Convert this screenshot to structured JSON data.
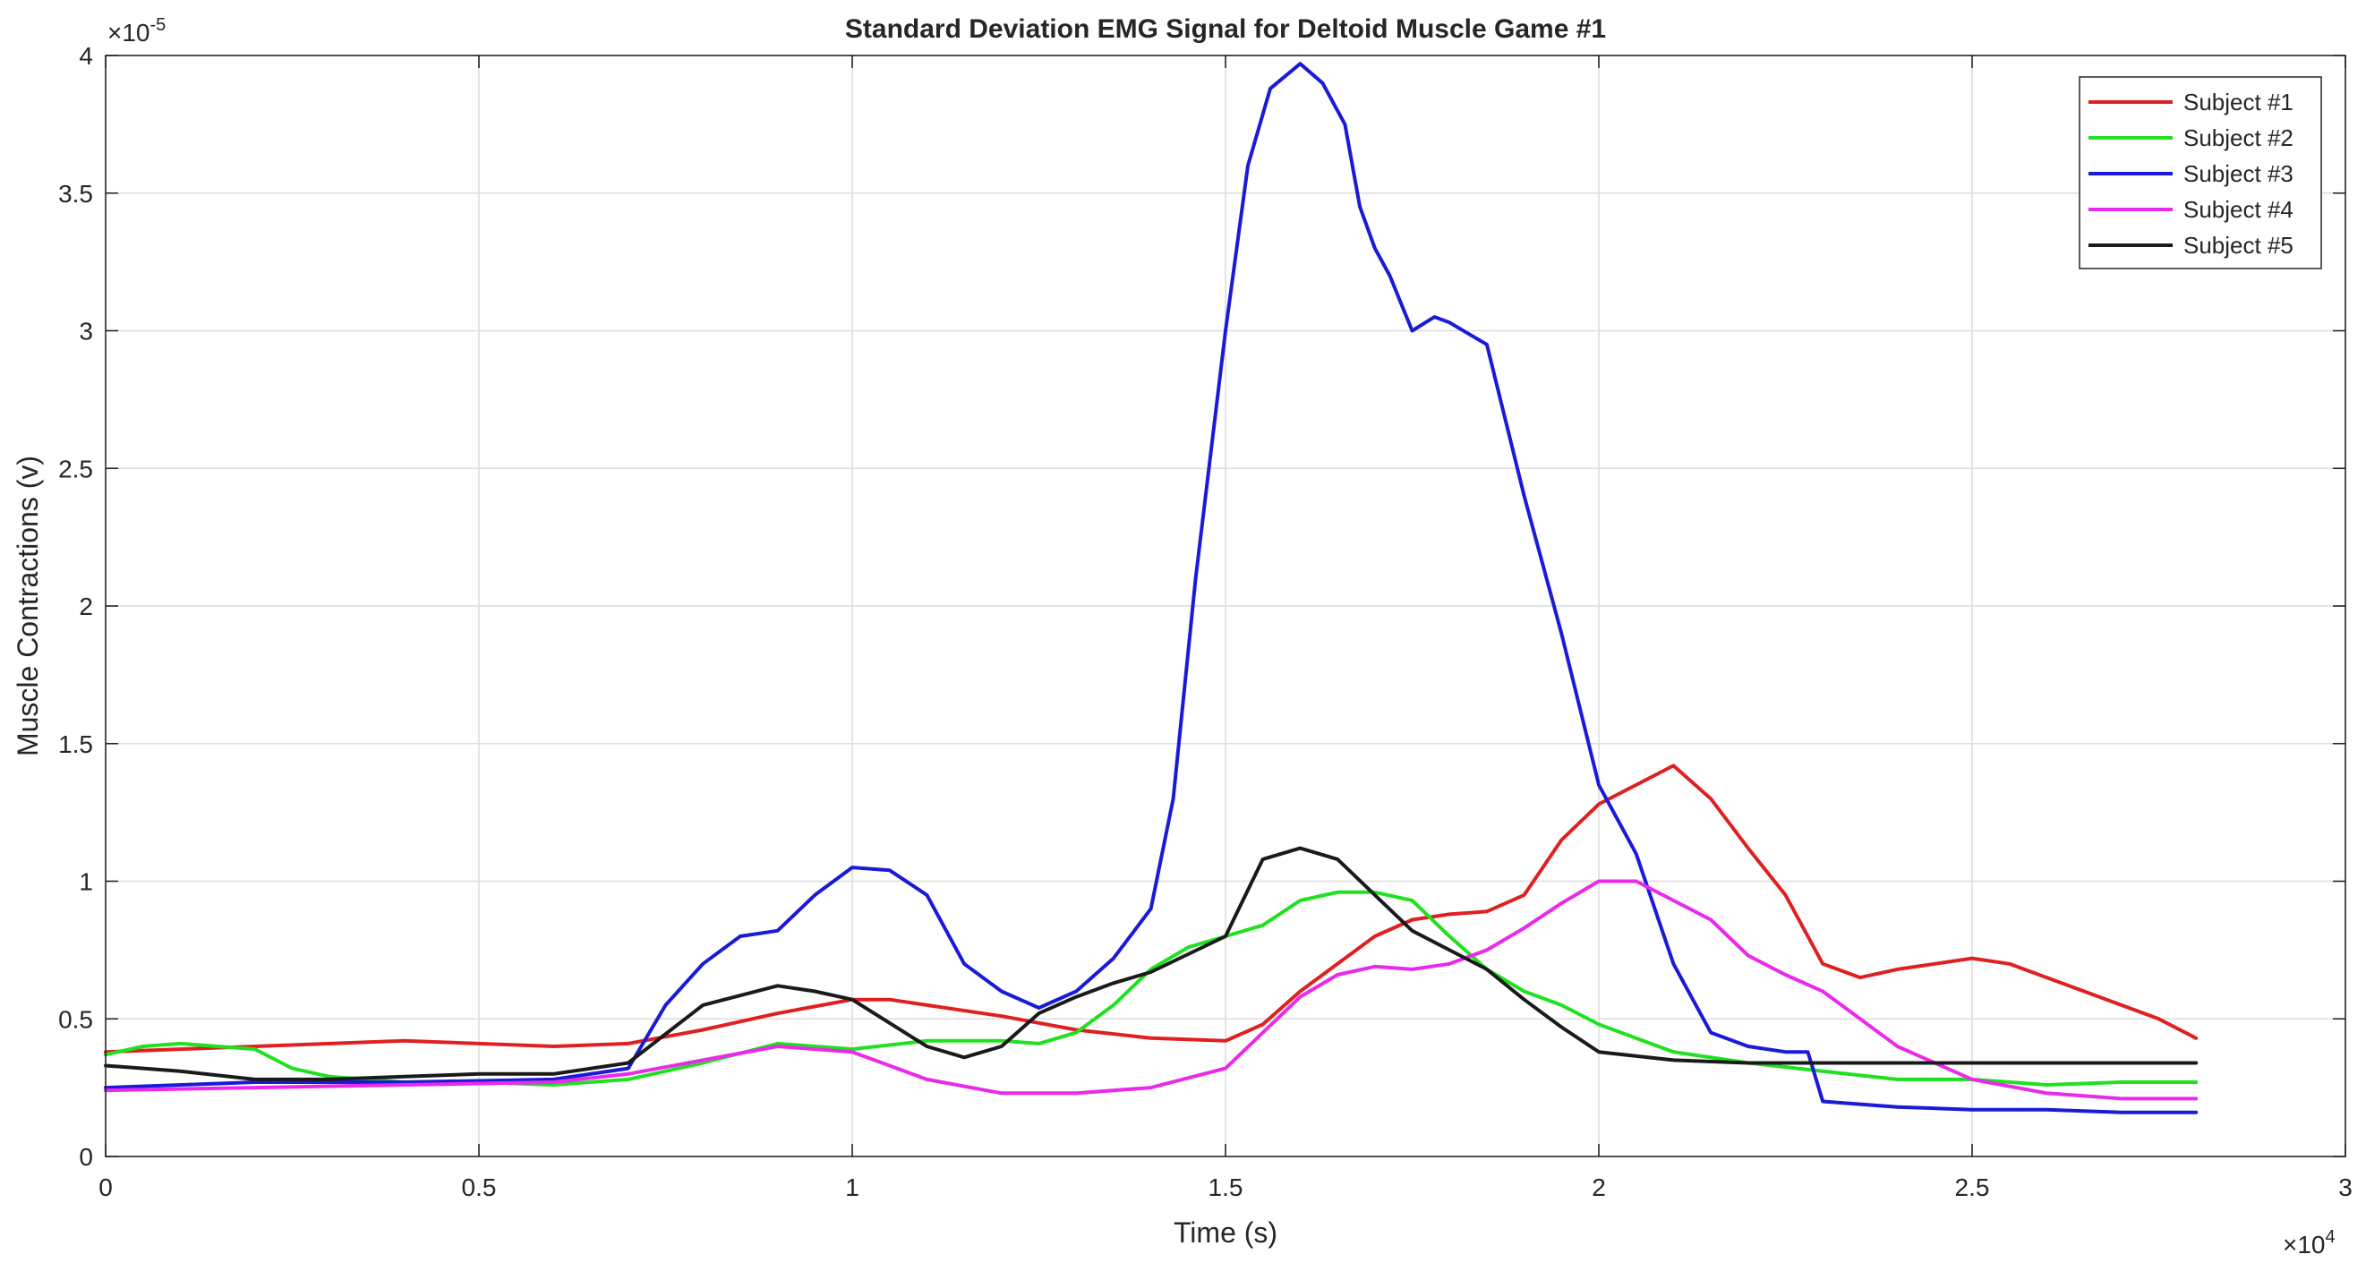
{
  "chart_data": {
    "type": "line",
    "title": "Standard Deviation EMG Signal for Deltoid Muscle Game #1",
    "xlabel": "Time (s)",
    "ylabel": "Muscle Contractions (v)",
    "x_multiplier": {
      "base": "×10",
      "exp": "4"
    },
    "y_multiplier": {
      "base": "×10",
      "exp": "-5"
    },
    "xlim": [
      0,
      3
    ],
    "ylim": [
      0,
      4
    ],
    "x_ticks": [
      0,
      0.5,
      1,
      1.5,
      2,
      2.5,
      3
    ],
    "x_tick_labels": [
      "0",
      "0.5",
      "1",
      "1.5",
      "2",
      "2.5",
      "3"
    ],
    "y_ticks": [
      0,
      0.5,
      1,
      1.5,
      2,
      2.5,
      3,
      3.5,
      4
    ],
    "y_tick_labels": [
      "0",
      "0.5",
      "1",
      "1.5",
      "2",
      "2.5",
      "3",
      "3.5",
      "4"
    ],
    "grid": true,
    "legend_position": "top-right",
    "series": [
      {
        "name": "Subject #1",
        "color": "#e02020",
        "x": [
          0,
          0.1,
          0.2,
          0.3,
          0.4,
          0.5,
          0.6,
          0.7,
          0.8,
          0.9,
          1.0,
          1.05,
          1.1,
          1.2,
          1.3,
          1.4,
          1.5,
          1.55,
          1.6,
          1.7,
          1.75,
          1.8,
          1.85,
          1.9,
          1.95,
          2.0,
          2.05,
          2.1,
          2.15,
          2.2,
          2.25,
          2.3,
          2.35,
          2.4,
          2.45,
          2.5,
          2.55,
          2.6,
          2.65,
          2.7,
          2.75,
          2.8
        ],
        "y": [
          0.38,
          0.39,
          0.4,
          0.41,
          0.42,
          0.41,
          0.4,
          0.41,
          0.46,
          0.52,
          0.57,
          0.57,
          0.55,
          0.51,
          0.46,
          0.43,
          0.42,
          0.48,
          0.6,
          0.8,
          0.86,
          0.88,
          0.89,
          0.95,
          1.15,
          1.28,
          1.35,
          1.42,
          1.3,
          1.12,
          0.95,
          0.7,
          0.65,
          0.68,
          0.7,
          0.72,
          0.7,
          0.65,
          0.6,
          0.55,
          0.5,
          0.43
        ]
      },
      {
        "name": "Subject #2",
        "color": "#20e020",
        "x": [
          0,
          0.05,
          0.1,
          0.15,
          0.2,
          0.25,
          0.3,
          0.4,
          0.5,
          0.6,
          0.7,
          0.8,
          0.9,
          1.0,
          1.1,
          1.2,
          1.25,
          1.3,
          1.35,
          1.4,
          1.45,
          1.5,
          1.55,
          1.6,
          1.65,
          1.7,
          1.75,
          1.8,
          1.85,
          1.9,
          1.95,
          2.0,
          2.1,
          2.2,
          2.3,
          2.4,
          2.5,
          2.6,
          2.7,
          2.8
        ],
        "y": [
          0.37,
          0.4,
          0.41,
          0.4,
          0.39,
          0.32,
          0.29,
          0.27,
          0.27,
          0.26,
          0.28,
          0.34,
          0.41,
          0.39,
          0.42,
          0.42,
          0.41,
          0.45,
          0.55,
          0.68,
          0.76,
          0.8,
          0.84,
          0.93,
          0.96,
          0.96,
          0.93,
          0.8,
          0.68,
          0.6,
          0.55,
          0.48,
          0.38,
          0.34,
          0.31,
          0.28,
          0.28,
          0.26,
          0.27,
          0.27
        ]
      },
      {
        "name": "Subject #3",
        "color": "#1a1ad8",
        "x": [
          0,
          0.2,
          0.4,
          0.6,
          0.7,
          0.75,
          0.8,
          0.85,
          0.9,
          0.95,
          1.0,
          1.05,
          1.1,
          1.15,
          1.2,
          1.25,
          1.3,
          1.35,
          1.4,
          1.43,
          1.46,
          1.5,
          1.53,
          1.56,
          1.6,
          1.63,
          1.66,
          1.68,
          1.7,
          1.72,
          1.75,
          1.78,
          1.8,
          1.85,
          1.9,
          1.95,
          2.0,
          2.05,
          2.1,
          2.15,
          2.2,
          2.25,
          2.28,
          2.3,
          2.4,
          2.5,
          2.6,
          2.7,
          2.8
        ],
        "y": [
          0.25,
          0.27,
          0.27,
          0.28,
          0.32,
          0.55,
          0.7,
          0.8,
          0.82,
          0.95,
          1.05,
          1.04,
          0.95,
          0.7,
          0.6,
          0.54,
          0.6,
          0.72,
          0.9,
          1.3,
          2.1,
          3.0,
          3.6,
          3.88,
          3.97,
          3.9,
          3.75,
          3.45,
          3.3,
          3.2,
          3.0,
          3.05,
          3.03,
          2.95,
          2.4,
          1.9,
          1.35,
          1.1,
          0.7,
          0.45,
          0.4,
          0.38,
          0.38,
          0.2,
          0.18,
          0.17,
          0.17,
          0.16,
          0.16
        ]
      },
      {
        "name": "Subject #4",
        "color": "#ea2aea",
        "x": [
          0,
          0.2,
          0.4,
          0.6,
          0.7,
          0.8,
          0.9,
          1.0,
          1.05,
          1.1,
          1.2,
          1.3,
          1.4,
          1.5,
          1.55,
          1.6,
          1.65,
          1.7,
          1.75,
          1.8,
          1.85,
          1.9,
          1.95,
          2.0,
          2.05,
          2.1,
          2.15,
          2.2,
          2.25,
          2.3,
          2.4,
          2.5,
          2.6,
          2.7,
          2.8
        ],
        "y": [
          0.24,
          0.25,
          0.26,
          0.27,
          0.3,
          0.35,
          0.4,
          0.38,
          0.33,
          0.28,
          0.23,
          0.23,
          0.25,
          0.32,
          0.45,
          0.58,
          0.66,
          0.69,
          0.68,
          0.7,
          0.75,
          0.83,
          0.92,
          1.0,
          1.0,
          0.93,
          0.86,
          0.73,
          0.66,
          0.6,
          0.4,
          0.28,
          0.23,
          0.21,
          0.21
        ]
      },
      {
        "name": "Subject #5",
        "color": "#1a1a1a",
        "x": [
          0,
          0.1,
          0.2,
          0.3,
          0.4,
          0.5,
          0.6,
          0.7,
          0.8,
          0.9,
          0.95,
          1.0,
          1.1,
          1.15,
          1.2,
          1.25,
          1.3,
          1.35,
          1.4,
          1.5,
          1.55,
          1.6,
          1.65,
          1.7,
          1.75,
          1.8,
          1.85,
          1.9,
          1.95,
          2.0,
          2.1,
          2.2,
          2.3,
          2.4,
          2.5,
          2.6,
          2.7,
          2.8
        ],
        "y": [
          0.33,
          0.31,
          0.28,
          0.28,
          0.29,
          0.3,
          0.3,
          0.34,
          0.55,
          0.62,
          0.6,
          0.57,
          0.4,
          0.36,
          0.4,
          0.52,
          0.58,
          0.63,
          0.67,
          0.8,
          1.08,
          1.12,
          1.08,
          0.95,
          0.82,
          0.75,
          0.68,
          0.57,
          0.47,
          0.38,
          0.35,
          0.34,
          0.34,
          0.34,
          0.34,
          0.34,
          0.34,
          0.34
        ]
      }
    ]
  }
}
